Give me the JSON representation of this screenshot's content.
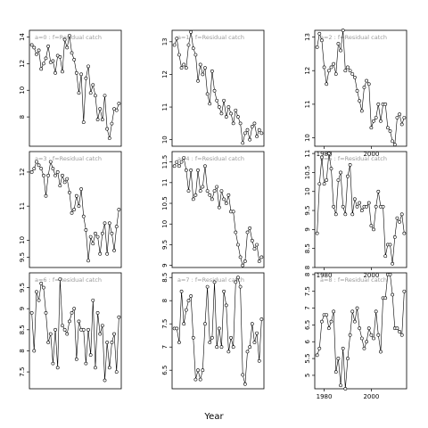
{
  "chart_data": [
    {
      "type": "scatter",
      "title": "a=0 : f=Residual catch",
      "x": [
        1977,
        1978,
        1979,
        1980,
        1981,
        1982,
        1983,
        1984,
        1985,
        1986,
        1987,
        1988,
        1989,
        1990,
        1991,
        1992,
        1993,
        1994,
        1995,
        1996,
        1997,
        1998,
        1999,
        2000,
        2001,
        2002,
        2003,
        2004,
        2005,
        2006,
        2007,
        2008,
        2009,
        2010,
        2011,
        2012,
        2013,
        2014
      ],
      "y": [
        13.4,
        13.2,
        12.7,
        13,
        11.6,
        12,
        12.4,
        13.3,
        12.1,
        12.2,
        11.3,
        12.6,
        12.5,
        11.4,
        13.8,
        13.2,
        14.1,
        12.8,
        12.3,
        11.3,
        9.8,
        11.2,
        7.6,
        10.9,
        11.8,
        9.8,
        10.4,
        9.6,
        7.8,
        8.6,
        7.8,
        9.6,
        7.1,
        6.4,
        7.5,
        8.6,
        8.5,
        9
      ],
      "ylim": [
        5.8,
        14.5
      ],
      "yticks": [
        8,
        10,
        12,
        14
      ],
      "show_x": false
    },
    {
      "type": "scatter",
      "title": "a=3 : f=Residual catch",
      "x": [
        1977,
        1978,
        1979,
        1980,
        1981,
        1982,
        1983,
        1984,
        1985,
        1986,
        1987,
        1988,
        1989,
        1990,
        1991,
        1992,
        1993,
        1994,
        1995,
        1996,
        1997,
        1998,
        1999,
        2000,
        2001,
        2002,
        2003,
        2004,
        2005,
        2006,
        2007,
        2008,
        2009,
        2010,
        2011,
        2012,
        2013,
        2014
      ],
      "y": [
        12,
        12.1,
        12.3,
        12.2,
        12.1,
        11.9,
        11.3,
        11.9,
        12.3,
        12.1,
        11.9,
        12,
        11.6,
        11.9,
        11.7,
        11.8,
        11.4,
        10.8,
        10.9,
        11.3,
        11,
        11.5,
        10.7,
        10.3,
        9.4,
        10.1,
        9.9,
        10.2,
        10.1,
        9.6,
        10.2,
        10.5,
        9.6,
        10.5,
        10.2,
        9.7,
        10.4,
        10.9
      ],
      "ylim": [
        9.2,
        12.6
      ],
      "yticks": [
        9.5,
        10,
        11,
        12
      ],
      "show_x": false
    },
    {
      "type": "scatter",
      "title": "a=6 : f=Residual catch",
      "x": [
        1977,
        1978,
        1979,
        1980,
        1981,
        1982,
        1983,
        1984,
        1985,
        1986,
        1987,
        1988,
        1989,
        1990,
        1991,
        1992,
        1993,
        1994,
        1995,
        1996,
        1997,
        1998,
        1999,
        2000,
        2001,
        2002,
        2003,
        2004,
        2005,
        2006,
        2007,
        2008,
        2009,
        2010,
        2011,
        2012,
        2013,
        2014
      ],
      "y": [
        8.9,
        8.0,
        9.4,
        9.2,
        9.6,
        9.5,
        8.9,
        8.2,
        8.4,
        7.7,
        8.5,
        7.6,
        9.7,
        8.6,
        8.5,
        8.4,
        8.7,
        8.9,
        9.0,
        7.8,
        8.7,
        8.5,
        8.5,
        7.7,
        8.5,
        7.9,
        9.2,
        7.6,
        8.9,
        8.4,
        8.6,
        7.3,
        8.2,
        7.6,
        8.2,
        8.4,
        7.5,
        8.8
      ],
      "ylim": [
        7.1,
        9.85
      ],
      "yticks": [
        7.5,
        8,
        8.5,
        9,
        9.5
      ],
      "show_x": false
    },
    {
      "type": "scatter",
      "title": "a=1 : f=Residual catch",
      "x": [
        1977,
        1978,
        1979,
        1980,
        1981,
        1982,
        1983,
        1984,
        1985,
        1986,
        1987,
        1988,
        1989,
        1990,
        1991,
        1992,
        1993,
        1994,
        1995,
        1996,
        1997,
        1998,
        1999,
        2000,
        2001,
        2002,
        2003,
        2004,
        2005,
        2006,
        2007,
        2008,
        2009,
        2010,
        2011,
        2012,
        2013,
        2014
      ],
      "y": [
        12.9,
        13.1,
        12.6,
        12.2,
        12.3,
        12.2,
        12.9,
        13.3,
        12.8,
        12.6,
        11.8,
        12.3,
        12.0,
        12.2,
        11.4,
        11.1,
        12.1,
        11.5,
        11.2,
        11.0,
        10.8,
        11.2,
        10.7,
        11.0,
        10.8,
        10.5,
        10.9,
        10.7,
        10.5,
        9.9,
        10.2,
        10.3,
        10.0,
        10.4,
        10.5,
        10.1,
        10.3,
        10.2
      ],
      "ylim": [
        9.8,
        13.35
      ],
      "yticks": [
        10,
        11,
        12,
        13
      ],
      "show_x": false
    },
    {
      "type": "scatter",
      "title": "a=4 : f=Residual catch",
      "x": [
        1977,
        1978,
        1979,
        1980,
        1981,
        1982,
        1983,
        1984,
        1985,
        1986,
        1987,
        1988,
        1989,
        1990,
        1991,
        1992,
        1993,
        1994,
        1995,
        1996,
        1997,
        1998,
        1999,
        2000,
        2001,
        2002,
        2003,
        2004,
        2005,
        2006,
        2007,
        2008,
        2009,
        2010,
        2011,
        2012,
        2013,
        2014
      ],
      "y": [
        11.4,
        11.5,
        11.4,
        11.5,
        11.6,
        11.3,
        10.8,
        11.3,
        10.6,
        10.7,
        11.3,
        10.8,
        10.9,
        11.4,
        10.8,
        10.7,
        10.6,
        10.8,
        10.9,
        10.4,
        10.8,
        10.6,
        10.5,
        10.7,
        10.3,
        10.3,
        9.8,
        9.5,
        9.2,
        9.0,
        9.1,
        9.8,
        9.9,
        9.6,
        9.4,
        9.5,
        9.1,
        9.2
      ],
      "ylim": [
        8.95,
        11.75
      ],
      "yticks": [
        9,
        9.5,
        10,
        10.5,
        11,
        11.5
      ],
      "show_x": false
    },
    {
      "type": "scatter",
      "title": "a=7 : f=Residual catch",
      "x": [
        1977,
        1978,
        1979,
        1980,
        1981,
        1982,
        1983,
        1984,
        1985,
        1986,
        1987,
        1988,
        1989,
        1990,
        1991,
        1992,
        1993,
        1994,
        1995,
        1996,
        1997,
        1998,
        1999,
        2000,
        2001,
        2002,
        2003,
        2004,
        2005,
        2006,
        2007,
        2008,
        2009,
        2010,
        2011,
        2012,
        2013,
        2014
      ],
      "y": [
        7.4,
        7.4,
        7.1,
        8.2,
        7.5,
        7.8,
        8.0,
        8.1,
        7.2,
        6.3,
        6.5,
        6.3,
        6.5,
        7.5,
        8.3,
        7.1,
        7.2,
        8.4,
        7.0,
        7.4,
        7.0,
        8.2,
        7.9,
        6.9,
        7.2,
        7.0,
        8.4,
        8.5,
        8.3,
        6.4,
        6.2,
        6.9,
        7.0,
        7.5,
        7.1,
        7.3,
        6.7,
        7.6
      ],
      "ylim": [
        6.1,
        8.6
      ],
      "yticks": [
        6.5,
        7,
        7.5,
        8,
        8.5
      ],
      "show_x": false
    },
    {
      "type": "scatter",
      "title": "a=2 : f=Residual catch",
      "x": [
        1977,
        1978,
        1979,
        1980,
        1981,
        1982,
        1983,
        1984,
        1985,
        1986,
        1987,
        1988,
        1989,
        1990,
        1991,
        1992,
        1993,
        1994,
        1995,
        1996,
        1997,
        1998,
        1999,
        2000,
        2001,
        2002,
        2003,
        2004,
        2005,
        2006,
        2007,
        2008,
        2009,
        2010,
        2011,
        2012,
        2013,
        2014
      ],
      "y": [
        12.7,
        13.1,
        12.9,
        12.1,
        11.6,
        12.0,
        12.1,
        12.2,
        11.9,
        12.8,
        12.6,
        13.2,
        12.0,
        12.1,
        12.0,
        11.9,
        11.8,
        11.4,
        11.1,
        10.8,
        11.5,
        11.7,
        11.6,
        10.3,
        10.5,
        10.6,
        11.0,
        10.5,
        11.0,
        11.0,
        10.3,
        10.2,
        9.9,
        9.8,
        10.6,
        10.7,
        10.4,
        10.6
      ],
      "ylim": [
        9.75,
        13.2
      ],
      "yticks": [
        10,
        11,
        12,
        13
      ],
      "show_x": true
    },
    {
      "type": "scatter",
      "title": "a=5 : f=Residual catch",
      "x": [
        1977,
        1978,
        1979,
        1980,
        1981,
        1982,
        1983,
        1984,
        1985,
        1986,
        1987,
        1988,
        1989,
        1990,
        1991,
        1992,
        1993,
        1994,
        1995,
        1996,
        1997,
        1998,
        1999,
        2000,
        2001,
        2002,
        2003,
        2004,
        2005,
        2006,
        2007,
        2008,
        2009,
        2010,
        2011,
        2012,
        2013,
        2014
      ],
      "y": [
        8.9,
        10.2,
        10.9,
        10.2,
        10.3,
        11.0,
        10.6,
        9.6,
        9.4,
        10.3,
        10.5,
        9.6,
        9.4,
        10.4,
        10.7,
        9.4,
        9.8,
        9.6,
        9.7,
        9.5,
        9.6,
        9.6,
        9.7,
        9.1,
        9.0,
        9.6,
        10.0,
        9.6,
        9.6,
        8.3,
        8.6,
        8.6,
        8.1,
        8.8,
        9.3,
        9.2,
        9.4,
        8.9
      ],
      "ylim": [
        8.0,
        11.05
      ],
      "yticks": [
        8,
        8.5,
        9,
        9.5,
        10,
        10.5,
        11
      ],
      "show_x": true
    },
    {
      "type": "scatter",
      "title": "a=8 : f=Residual catch",
      "x": [
        1977,
        1978,
        1979,
        1980,
        1981,
        1982,
        1983,
        1984,
        1985,
        1986,
        1987,
        1988,
        1989,
        1990,
        1991,
        1992,
        1993,
        1994,
        1995,
        1996,
        1997,
        1998,
        1999,
        2000,
        2001,
        2002,
        2003,
        2004,
        2005,
        2006,
        2007,
        2008,
        2009,
        2010,
        2011,
        2012,
        2013,
        2014
      ],
      "y": [
        5.6,
        5.8,
        6.6,
        6.8,
        6.8,
        6.4,
        6.6,
        6.9,
        5.1,
        5.5,
        4.7,
        5.8,
        4.6,
        5.5,
        6.2,
        6.9,
        6.6,
        7.0,
        6.4,
        6.1,
        5.8,
        6.0,
        6.4,
        6.2,
        6.1,
        6.9,
        6.2,
        5.7,
        7.3,
        7.3,
        8.0,
        8.0,
        7.4,
        6.4,
        6.4,
        6.3,
        6.2,
        7.5
      ],
      "ylim": [
        4.6,
        8.05
      ],
      "yticks": [
        5,
        5.5,
        6,
        6.5,
        7,
        7.5,
        8
      ],
      "show_x": true
    }
  ],
  "xaxis": {
    "xlim": [
      1976,
      2015
    ],
    "xticks": [
      1980,
      2000
    ],
    "label": "Year"
  }
}
